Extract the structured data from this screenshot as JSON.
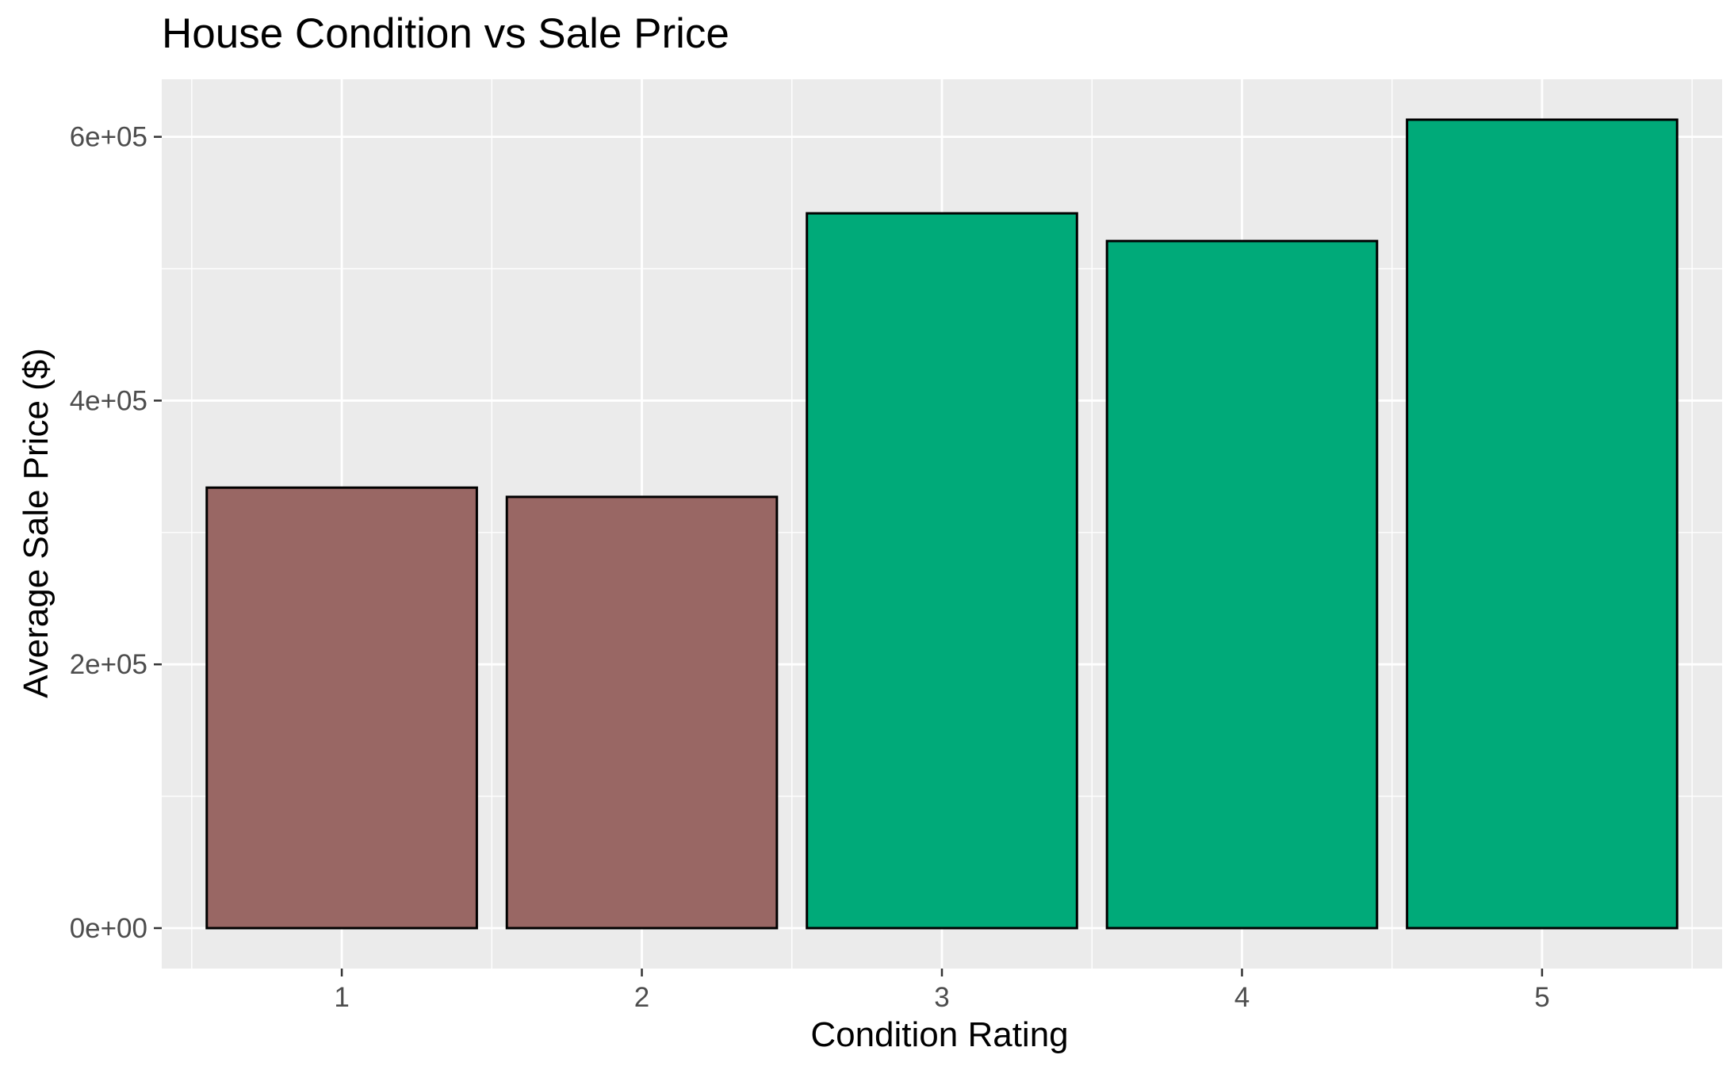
{
  "chart_data": {
    "type": "bar",
    "title": "House Condition vs Sale Price",
    "xlabel": "Condition Rating",
    "ylabel": "Average Sale Price ($)",
    "categories": [
      "1",
      "2",
      "3",
      "4",
      "5"
    ],
    "values": [
      334000,
      327000,
      542000,
      521000,
      613000
    ],
    "bar_colors": [
      "#996764",
      "#996764",
      "#00AA79",
      "#00AA79",
      "#00AA79"
    ],
    "ylim": [
      -30650,
      643650
    ],
    "y_ticks": [
      0,
      200000,
      400000,
      600000
    ],
    "y_tick_labels": [
      "0e+00",
      "2e+05",
      "4e+05",
      "6e+05"
    ],
    "y_minor_ticks": [
      100000,
      300000,
      500000
    ],
    "grid": true,
    "legend": "none",
    "colors": {
      "panel_background": "#EBEBEB",
      "grid": "#FFFFFF",
      "bar_outline": "#000000",
      "tick_text": "#4D4D4D",
      "tick_mark": "#333333"
    }
  }
}
